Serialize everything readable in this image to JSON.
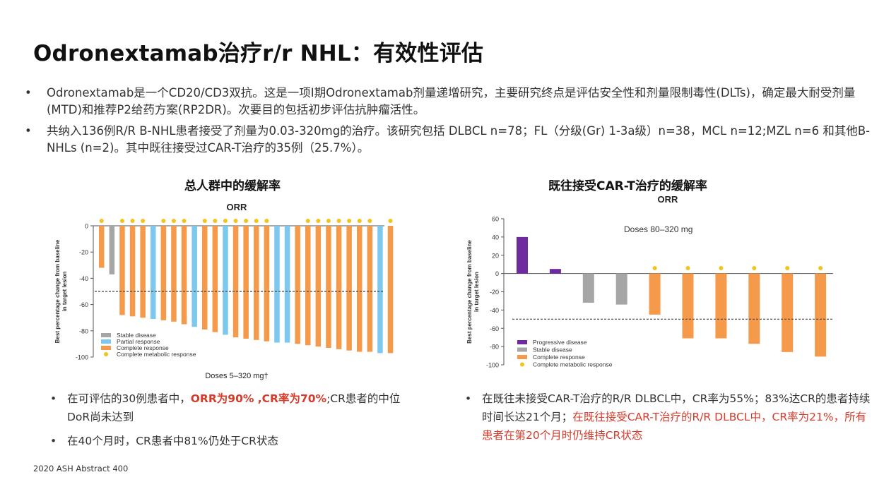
{
  "slide": {
    "title": "Odronextamab治疗r/r NHL：有效性评估",
    "bullets": [
      "Odronextamab是一个CD20/CD3双抗。这是一项I期Odronextamab剂量递增研究，主要研究终点是评估安全性和剂量限制毒性(DLTs)，确定最大耐受剂量(MTD)和推荐P2给药方案(RP2DR)。次要目的包括初步评估抗肿瘤活性。",
      "共纳入136例R/R B-NHL患者接受了剂量为0.03-320mg的治疗。该研究包括 DLBCL n=78；FL（分级(Gr) 1-3a级）n=38，MCL n=12;MZL n=6 和其他B-NHLs (n=2)。其中既往接受过CAR-T治疗的35例（25.7%）。"
    ],
    "bullet_symbol": "•",
    "left_heading": "总人群中的缓解率",
    "right_heading": "既往接受CAR-T治疗的缓解率",
    "left_notes": {
      "n1_pre": "在可评估的30例患者中，",
      "n1_red": "ORR为90% ,CR率为70%",
      "n1_post": ";CR患者的中位DoR尚未达到",
      "n2": "在40个月时，CR患者中81%仍处于CR状态"
    },
    "right_notes": {
      "n1_pre": "在既往未接受CAR-T治疗的R/R DLBCL中，CR率为55%；83%达CR的患者持续时间长达21个月；",
      "n1_red": "在既往接受CAR-T治疗的R/R DLBCL中，CR率为21%，所有患者在第20个月时仍维持CR状态"
    },
    "footer": "2020 ASH Abstract 400"
  },
  "colors": {
    "stable": "#a6a6a6",
    "partial": "#7cc8ee",
    "complete": "#f59a4a",
    "progressive": "#6f2aa0",
    "cmr_dot": "#f2c31e",
    "red_text": "#d63b2b"
  },
  "chart_data": [
    {
      "type": "bar",
      "title": "ORR",
      "ylabel": "Best percentage change from baseline in target lesion",
      "xlabel": "Doses 5–320 mg†",
      "ylim": [
        -100,
        0
      ],
      "yticks": [
        0,
        -20,
        -40,
        -60,
        -80,
        -100
      ],
      "reference_line": -50,
      "response_codes": {
        "S": "Stable disease",
        "P": "Partial response",
        "C": "Complete response"
      },
      "legend": [
        "Stable disease",
        "Partial response",
        "Complete response",
        "Complete metabolic response"
      ],
      "legend_position": "bottom-left",
      "values": [
        -32,
        -37,
        -68,
        -69,
        -70,
        -71,
        -72,
        -73,
        -75,
        -77,
        -79,
        -81,
        -83,
        -85,
        -86,
        -87,
        -88,
        -89,
        -89,
        -90,
        -91,
        -92,
        -93,
        -94,
        -95,
        -96,
        -96,
        -97,
        -97
      ],
      "responses": [
        "C",
        "S",
        "C",
        "C",
        "C",
        "P",
        "C",
        "C",
        "C",
        "P",
        "C",
        "C",
        "P",
        "C",
        "C",
        "C",
        "C",
        "P",
        "P",
        "C",
        "C",
        "C",
        "C",
        "C",
        "C",
        "C",
        "C",
        "P",
        "C"
      ],
      "cmr": [
        true,
        false,
        true,
        true,
        true,
        false,
        true,
        true,
        true,
        false,
        true,
        true,
        true,
        true,
        true,
        true,
        true,
        false,
        false,
        false,
        true,
        true,
        true,
        true,
        true,
        true,
        true,
        false,
        true
      ]
    },
    {
      "type": "bar",
      "title": "ORR",
      "subtitle": "Doses 80–320 mg",
      "ylabel": "Best percentage change from baseline in target lesion",
      "ylim": [
        -100,
        60
      ],
      "yticks": [
        60,
        40,
        20,
        0,
        -20,
        -40,
        -60,
        -80,
        -100
      ],
      "reference_line": -50,
      "response_codes": {
        "PD": "Progressive disease",
        "S": "Stable disease",
        "C": "Complete response"
      },
      "legend": [
        "Progressive disease",
        "Stable disease",
        "Complete response",
        "Complete metabolic response"
      ],
      "legend_position": "bottom-left",
      "values": [
        40,
        5,
        -32,
        -34,
        -45,
        -71,
        -71,
        -77,
        -86,
        -91
      ],
      "responses": [
        "PD",
        "PD",
        "S",
        "S",
        "C",
        "C",
        "C",
        "C",
        "C",
        "C"
      ],
      "cmr": [
        false,
        false,
        false,
        false,
        true,
        true,
        true,
        true,
        true,
        true
      ]
    }
  ]
}
